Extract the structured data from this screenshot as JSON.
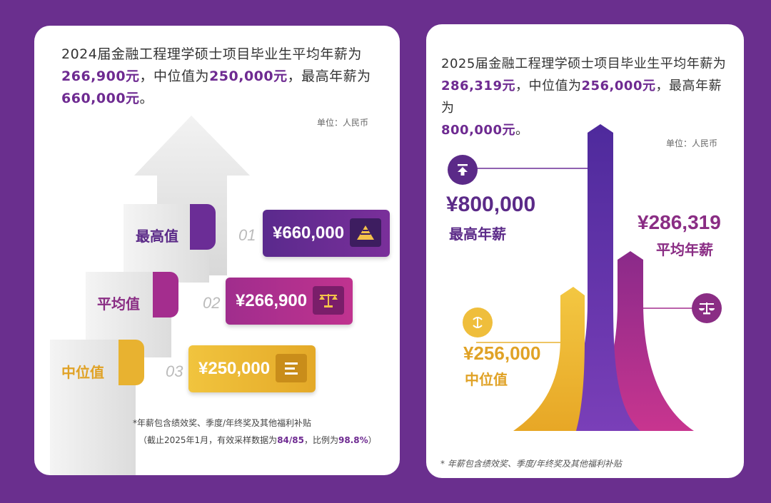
{
  "left": {
    "intro": {
      "line1": "2024届金融工程理学硕士项目毕业生平均年薪为",
      "avg": "266,900元",
      "mid_text": "，中位值为",
      "median": "250,000元",
      "max_text": "，最高年薪为",
      "max": "660,000元",
      "end": "。"
    },
    "unit": "单位：人民币",
    "rows": [
      {
        "label": "最高值",
        "number": "01",
        "value": "¥660,000",
        "icon": "pyramid-icon",
        "color": "#6b2d96"
      },
      {
        "label": "平均值",
        "number": "02",
        "value": "¥266,900",
        "icon": "scale-icon",
        "color": "#a42d8e"
      },
      {
        "label": "中位值",
        "number": "03",
        "value": "¥250,000",
        "icon": "bars-icon",
        "color": "#e8b230"
      }
    ],
    "footnote1": "*年薪包含绩效奖、季度/年终奖及其他福利补贴",
    "footnote2_a": "（截止2025年1月，有效采样数据为",
    "footnote2_ratio": "84/85",
    "footnote2_b": "，比例为",
    "footnote2_pct": "98.8%",
    "footnote2_c": "）"
  },
  "right": {
    "intro": {
      "line1": "2025届金融工程理学硕士项目毕业生平均年薪为",
      "avg": "286,319元",
      "mid_text": "，中位值为",
      "median": "256,000元",
      "max_text": "，最高年薪为",
      "max": "800,000元",
      "end": "。"
    },
    "unit": "单位：人民币",
    "max_value": "¥800,000",
    "max_label": "最高年薪",
    "avg_value": "¥286,319",
    "avg_label": "平均年薪",
    "median_value": "¥256,000",
    "median_label": "中位值",
    "footnote": "* 年薪包含绩效奖、季度/年终奖及其他福利补贴",
    "colors": {
      "purple": "#5b2aa0",
      "magenta": "#a32d8f",
      "gold": "#e8b230"
    }
  }
}
